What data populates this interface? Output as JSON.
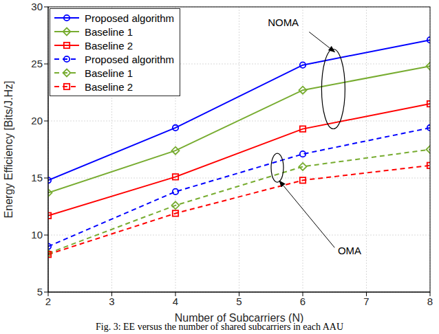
{
  "chart_data": {
    "type": "line",
    "x_label": "Number of Subcarriers (N)",
    "y_label": "Energy Efficiency [Bits/J.Hz]",
    "caption": "Fig. 3: EE versus the number of shared subcarriers in each AAU",
    "x": [
      2,
      4,
      6,
      8
    ],
    "series": [
      {
        "name": "Proposed algorithm",
        "color": "#0000ff",
        "marker": "circle",
        "line_style": "solid",
        "values": [
          14.8,
          19.4,
          24.9,
          27.1
        ]
      },
      {
        "name": "Baseline 1",
        "color": "#77ac30",
        "marker": "diamond",
        "line_style": "solid",
        "values": [
          13.7,
          17.4,
          22.7,
          24.8
        ]
      },
      {
        "name": "Baseline 2",
        "color": "#ff0000",
        "marker": "square",
        "line_style": "solid",
        "values": [
          11.7,
          15.1,
          19.3,
          21.5
        ]
      },
      {
        "name": "Proposed algorithm",
        "color": "#0000ff",
        "marker": "circle",
        "line_style": "dashed",
        "values": [
          9.0,
          13.8,
          17.1,
          19.4
        ]
      },
      {
        "name": "Baseline 1",
        "color": "#77ac30",
        "marker": "diamond",
        "line_style": "dashed",
        "values": [
          8.4,
          12.6,
          16.0,
          17.5
        ]
      },
      {
        "name": "Baseline 2",
        "color": "#ff0000",
        "marker": "square",
        "line_style": "dashed",
        "values": [
          8.3,
          11.9,
          14.8,
          16.1
        ]
      }
    ],
    "annotations": [
      "NOMA",
      "OMA"
    ],
    "xlim": [
      2,
      8
    ],
    "xticks": [
      2,
      3,
      4,
      5,
      6,
      7,
      8
    ],
    "ylim": [
      5,
      30
    ],
    "yticks": [
      5,
      10,
      15,
      20,
      25,
      30
    ],
    "grid": true,
    "legend": "upper left"
  }
}
